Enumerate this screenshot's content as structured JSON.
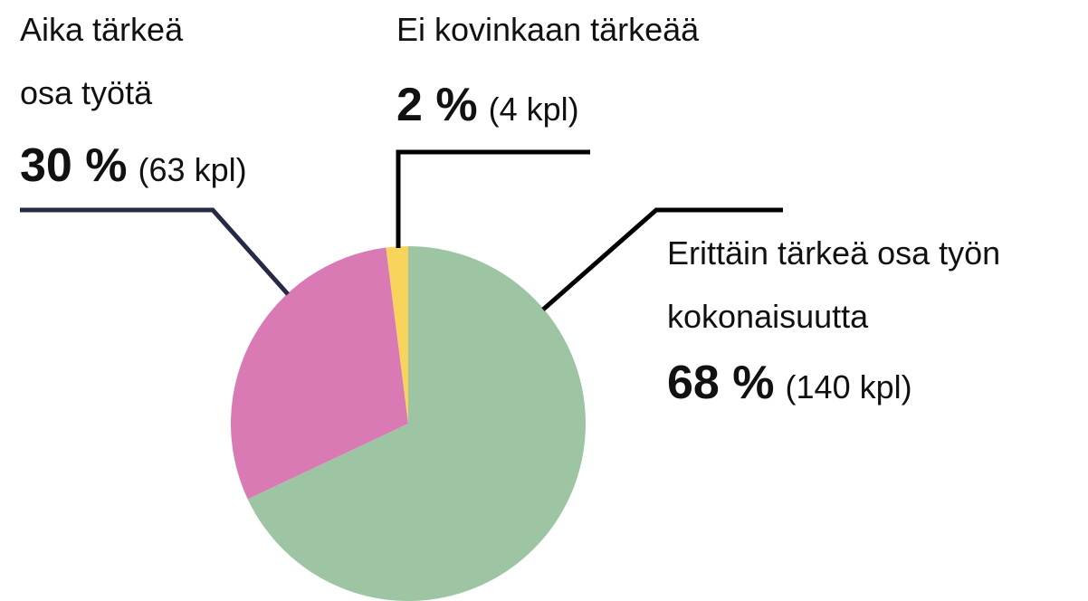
{
  "chart_data": {
    "type": "pie",
    "categories": [
      [
        "Erittäin tärkeä osa työn",
        "kokonaisuutta"
      ],
      [
        "Aika tärkeä",
        "osa työtä"
      ],
      [
        "Ei kovinkaan tärkeää"
      ]
    ],
    "values": [
      68,
      30,
      2
    ],
    "value_labels": [
      "68 %",
      "30 %",
      "2 %"
    ],
    "count_labels": [
      "(140 kpl)",
      "(63 kpl)",
      "(4 kpl)"
    ],
    "colors": [
      "#9dc5a3",
      "#da7ab5",
      "#f9d45c"
    ],
    "start_angle": 0,
    "direction": "clockwise"
  }
}
